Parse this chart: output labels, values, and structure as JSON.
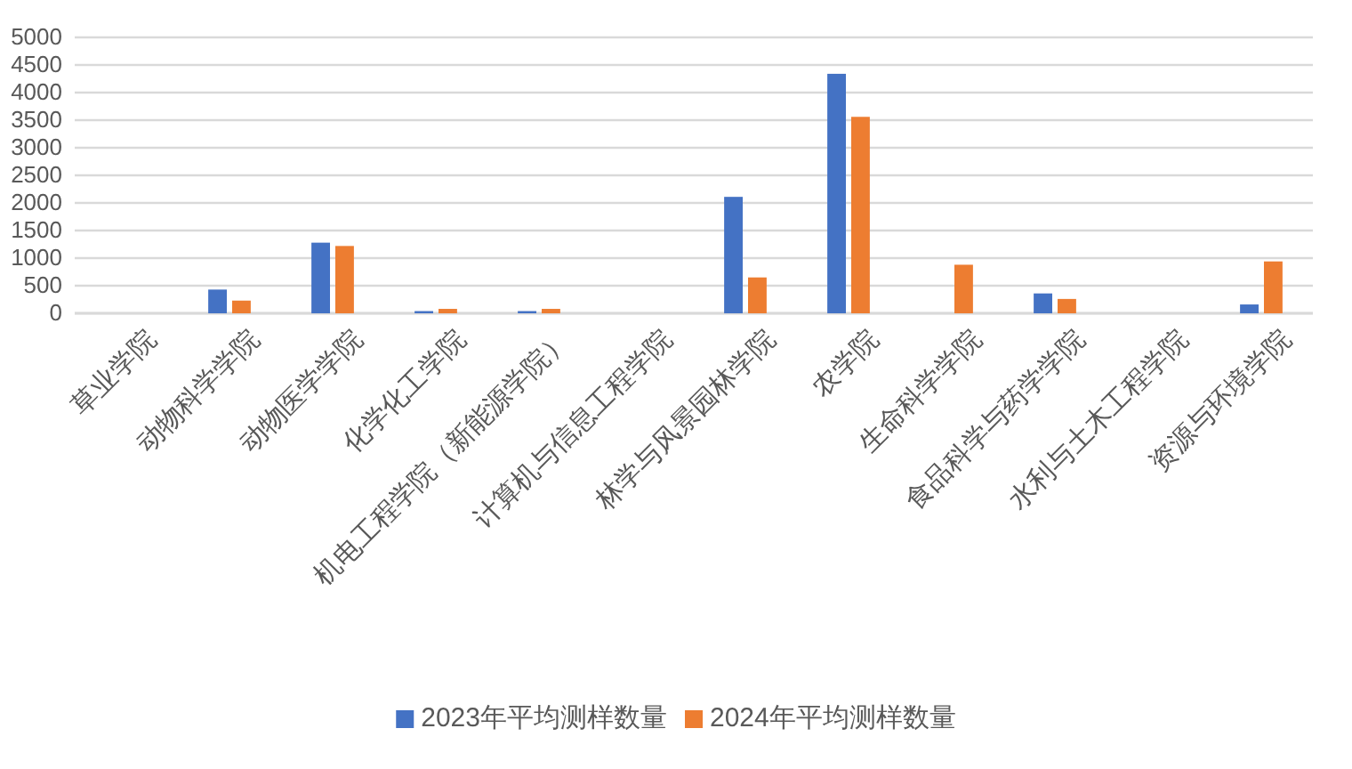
{
  "chart_data": {
    "type": "bar",
    "categories": [
      "草业学院",
      "动物科学学院",
      "动物医学学院",
      "化学化工学院",
      "机电工程学院（新能源学院）",
      "计算机与信息工程学院",
      "林学与风景园林学院",
      "农学院",
      "生命科学学院",
      "食品科学与药学学院",
      "水利与土木工程学院",
      "资源与环境学院"
    ],
    "series": [
      {
        "name": "2023年平均测样数量",
        "color": "#4472c4",
        "values": [
          0,
          430,
          1280,
          40,
          40,
          0,
          2110,
          4340,
          0,
          360,
          0,
          160
        ]
      },
      {
        "name": "2024年平均测样数量",
        "color": "#ed7d31",
        "values": [
          0,
          230,
          1220,
          80,
          80,
          0,
          650,
          3560,
          880,
          260,
          0,
          940
        ]
      }
    ],
    "ylim": [
      0,
      5000
    ],
    "yticks": [
      0,
      500,
      1000,
      1500,
      2000,
      2500,
      3000,
      3500,
      4000,
      4500,
      5000
    ],
    "grid": "y",
    "legend": "bottom"
  }
}
